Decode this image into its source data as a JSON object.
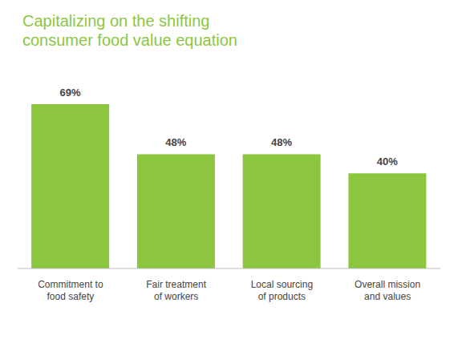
{
  "chart_data": {
    "type": "bar",
    "title": "Capitalizing on the shifting consumer food value equation",
    "categories": [
      "Commitment to food safety",
      "Fair treatment of workers",
      "Local sourcing of products",
      "Overall mission and values"
    ],
    "values": [
      69,
      48,
      48,
      40
    ],
    "value_labels": [
      "69%",
      "48%",
      "48%",
      "40%"
    ],
    "color": "#8cc63f",
    "data_labels": true,
    "tick_labels": "x",
    "grid": false
  }
}
